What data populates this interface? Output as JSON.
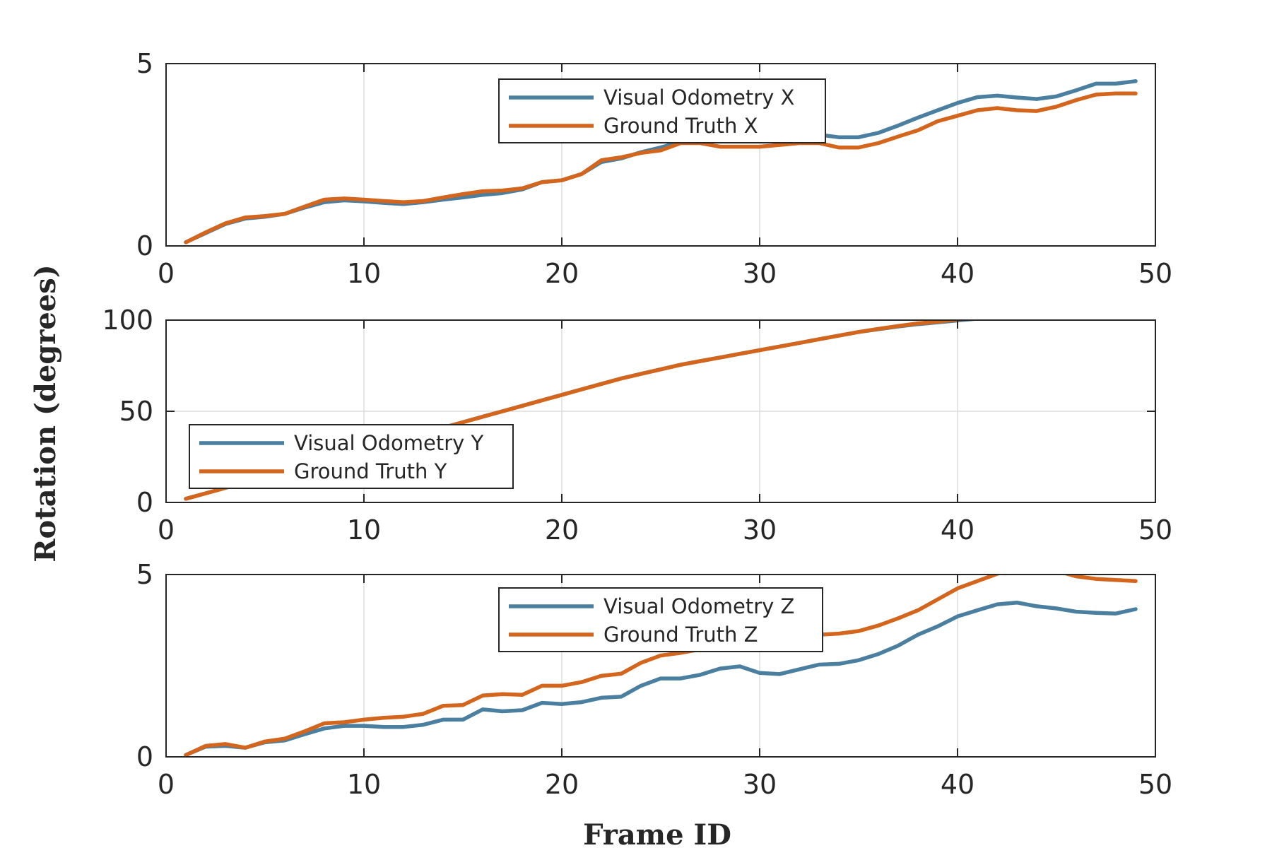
{
  "figure": {
    "ylabel": "Rotation (degrees)",
    "xlabel": "Frame ID"
  },
  "colors": {
    "visual_odometry": "#4a7fa0",
    "ground_truth": "#d4651c"
  },
  "chart_data": [
    {
      "type": "line",
      "panel": "X",
      "xlim": [
        0,
        50
      ],
      "ylim": [
        0,
        5
      ],
      "xticks": [
        0,
        10,
        20,
        30,
        40,
        50
      ],
      "yticks": [
        0,
        5
      ],
      "grid": true,
      "legend_position": "top-center",
      "x": [
        1,
        2,
        3,
        4,
        5,
        6,
        7,
        8,
        9,
        10,
        11,
        12,
        13,
        14,
        15,
        16,
        17,
        18,
        19,
        20,
        21,
        22,
        23,
        24,
        25,
        26,
        27,
        28,
        29,
        30,
        31,
        32,
        33,
        34,
        35,
        36,
        37,
        38,
        39,
        40,
        41,
        42,
        43,
        44,
        45,
        46,
        47,
        48,
        49
      ],
      "series": [
        {
          "name": "Visual Odometry X",
          "color_key": "visual_odometry",
          "values": [
            0.1,
            0.35,
            0.6,
            0.75,
            0.8,
            0.88,
            1.05,
            1.2,
            1.25,
            1.22,
            1.18,
            1.15,
            1.2,
            1.27,
            1.33,
            1.4,
            1.45,
            1.55,
            1.75,
            1.8,
            1.97,
            2.3,
            2.4,
            2.57,
            2.7,
            2.85,
            2.95,
            2.97,
            3.0,
            2.9,
            2.95,
            3.05,
            3.05,
            2.98,
            2.98,
            3.1,
            3.3,
            3.52,
            3.72,
            3.92,
            4.08,
            4.12,
            4.07,
            4.03,
            4.1,
            4.27,
            4.45,
            4.45,
            4.52
          ]
        },
        {
          "name": "Ground Truth X",
          "color_key": "ground_truth",
          "values": [
            0.1,
            0.37,
            0.62,
            0.78,
            0.82,
            0.88,
            1.08,
            1.27,
            1.3,
            1.27,
            1.23,
            1.2,
            1.23,
            1.33,
            1.42,
            1.5,
            1.52,
            1.58,
            1.75,
            1.8,
            1.97,
            2.35,
            2.43,
            2.55,
            2.62,
            2.82,
            2.82,
            2.72,
            2.72,
            2.72,
            2.77,
            2.82,
            2.82,
            2.7,
            2.7,
            2.82,
            3.0,
            3.17,
            3.42,
            3.57,
            3.72,
            3.78,
            3.72,
            3.7,
            3.82,
            4.0,
            4.15,
            4.18,
            4.18
          ]
        }
      ]
    },
    {
      "type": "line",
      "panel": "Y",
      "xlim": [
        0,
        50
      ],
      "ylim": [
        0,
        100
      ],
      "xticks": [
        0,
        10,
        20,
        30,
        40,
        50
      ],
      "yticks": [
        0,
        50,
        100
      ],
      "grid": true,
      "legend_position": "bottom-left",
      "x": [
        1,
        2,
        3,
        4,
        5,
        6,
        7,
        8,
        9,
        10,
        11,
        12,
        13,
        14,
        15,
        16,
        17,
        18,
        19,
        20,
        21,
        22,
        23,
        24,
        25,
        26,
        27,
        28,
        29,
        30,
        31,
        32,
        33,
        34,
        35,
        36,
        37,
        38,
        39,
        40,
        41,
        42,
        43,
        44,
        45,
        46,
        47,
        48,
        49
      ],
      "series": [
        {
          "name": "Visual Odometry Y",
          "color_key": "visual_odometry",
          "values": [
            2,
            5,
            8,
            11,
            14,
            17,
            20,
            23,
            26,
            29,
            32,
            35,
            38,
            41,
            44,
            47,
            50,
            53,
            56,
            59,
            62,
            65,
            68,
            70.5,
            73,
            75.5,
            77.5,
            79.5,
            81.5,
            83.5,
            85.5,
            87.5,
            89.5,
            91.5,
            93.5,
            95,
            96.5,
            97.8,
            98.8,
            99.8,
            100.8,
            101.6,
            102.4,
            103.2,
            104,
            104.6,
            105.2,
            105.8,
            106.2
          ]
        },
        {
          "name": "Ground Truth Y",
          "color_key": "ground_truth",
          "values": [
            2,
            5,
            8,
            11,
            14,
            17,
            20,
            23,
            26,
            29,
            32,
            35,
            38,
            41,
            44,
            47,
            50,
            53,
            56,
            59,
            62,
            65,
            68,
            70.5,
            73,
            75.5,
            77.5,
            79.5,
            81.5,
            83.5,
            85.5,
            87.5,
            89.5,
            91.5,
            93.5,
            95.2,
            96.8,
            98.2,
            99.2,
            100.3,
            101.2,
            102.1,
            102.9,
            103.6,
            104.3,
            104.9,
            105.5,
            106,
            106.4
          ]
        }
      ]
    },
    {
      "type": "line",
      "panel": "Z",
      "xlim": [
        0,
        50
      ],
      "ylim": [
        0,
        5
      ],
      "xticks": [
        0,
        10,
        20,
        30,
        40,
        50
      ],
      "yticks": [
        0,
        5
      ],
      "grid": true,
      "legend_position": "top-center",
      "x": [
        1,
        2,
        3,
        4,
        5,
        6,
        7,
        8,
        9,
        10,
        11,
        12,
        13,
        14,
        15,
        16,
        17,
        18,
        19,
        20,
        21,
        22,
        23,
        24,
        25,
        26,
        27,
        28,
        29,
        30,
        31,
        32,
        33,
        34,
        35,
        36,
        37,
        38,
        39,
        40,
        41,
        42,
        43,
        44,
        45,
        46,
        47,
        48,
        49
      ],
      "series": [
        {
          "name": "Visual Odometry Z",
          "color_key": "visual_odometry",
          "values": [
            0.05,
            0.28,
            0.3,
            0.25,
            0.4,
            0.45,
            0.62,
            0.78,
            0.85,
            0.85,
            0.82,
            0.82,
            0.88,
            1.02,
            1.02,
            1.3,
            1.25,
            1.28,
            1.48,
            1.45,
            1.5,
            1.62,
            1.65,
            1.95,
            2.15,
            2.15,
            2.25,
            2.42,
            2.48,
            2.3,
            2.27,
            2.4,
            2.53,
            2.55,
            2.65,
            2.82,
            3.05,
            3.35,
            3.58,
            3.85,
            4.02,
            4.18,
            4.23,
            4.13,
            4.07,
            3.98,
            3.95,
            3.93,
            4.05
          ]
        },
        {
          "name": "Ground Truth Z",
          "color_key": "ground_truth",
          "values": [
            0.05,
            0.3,
            0.35,
            0.25,
            0.42,
            0.5,
            0.7,
            0.92,
            0.95,
            1.02,
            1.07,
            1.1,
            1.18,
            1.4,
            1.42,
            1.68,
            1.72,
            1.7,
            1.95,
            1.95,
            2.05,
            2.22,
            2.28,
            2.58,
            2.78,
            2.85,
            2.95,
            3.08,
            3.2,
            3.15,
            3.2,
            3.28,
            3.35,
            3.38,
            3.45,
            3.6,
            3.8,
            4.02,
            4.32,
            4.62,
            4.82,
            5.02,
            5.15,
            5.2,
            5.1,
            4.95,
            4.88,
            4.85,
            4.82
          ]
        }
      ]
    }
  ]
}
